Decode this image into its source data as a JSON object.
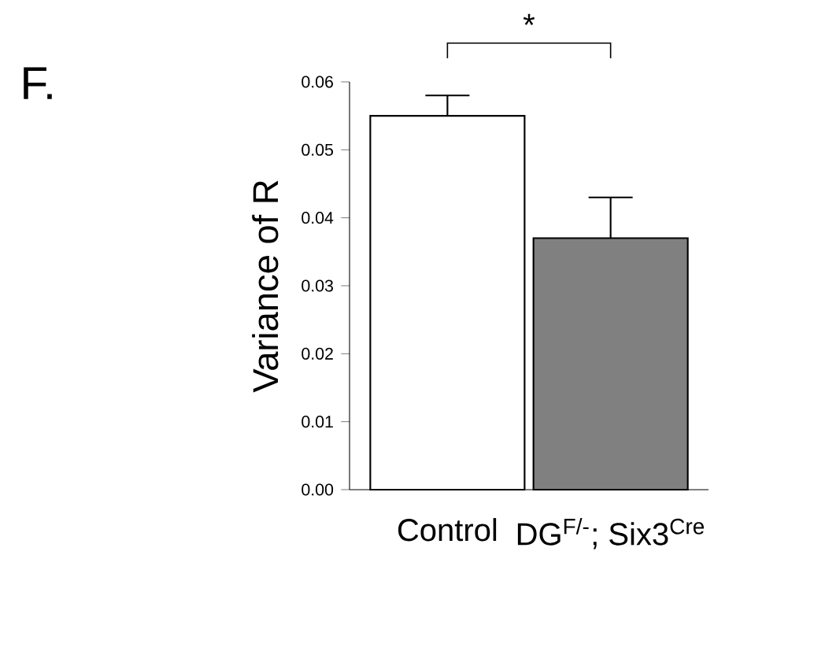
{
  "chart_data": {
    "type": "bar",
    "title": "F.",
    "ylabel": "Variance of R",
    "categories": [
      "Control",
      "DG$^{F/-}$; Six3$^{Cre}$"
    ],
    "values": [
      0.055,
      0.037
    ],
    "colors": [
      "#ffffff",
      "#808080"
    ],
    "errors": [
      [
        0.055,
        0.058
      ],
      [
        0.037,
        0.043
      ]
    ],
    "ylim": [
      0,
      0.06
    ],
    "yticks": [
      {
        "value": 0,
        "label": "0.00"
      },
      {
        "value": 0.01,
        "label": "0.01"
      },
      {
        "value": 0.02,
        "label": "0.02"
      },
      {
        "value": 0.03,
        "label": "0.03"
      },
      {
        "value": 0.04,
        "label": "0.04"
      },
      {
        "value": 0.05,
        "label": "0.05"
      },
      {
        "value": 0.06,
        "label": "0.06"
      }
    ],
    "annotations": [
      "*"
    ],
    "grid": false
  }
}
